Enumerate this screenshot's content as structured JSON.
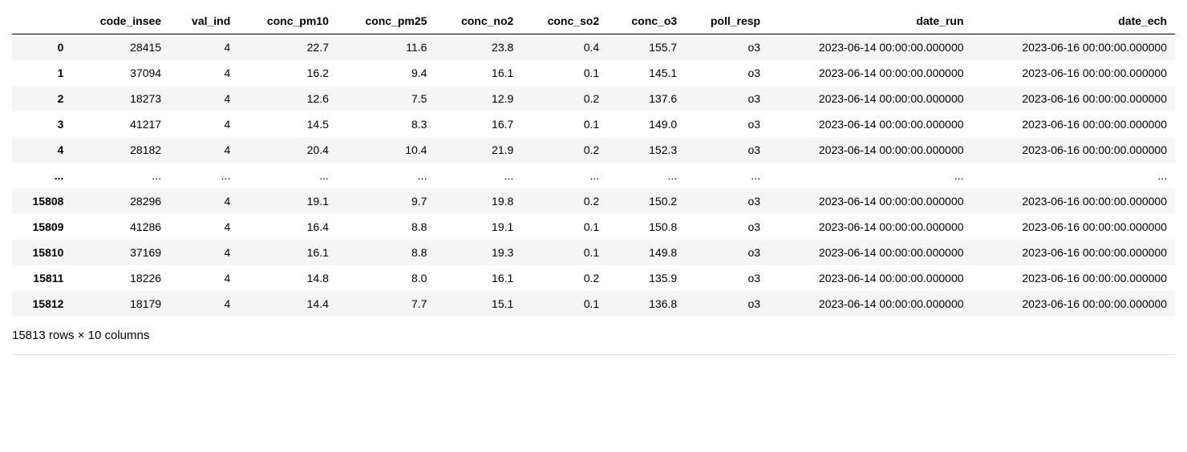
{
  "table": {
    "columns": [
      "code_insee",
      "val_ind",
      "conc_pm10",
      "conc_pm25",
      "conc_no2",
      "conc_so2",
      "conc_o3",
      "poll_resp",
      "date_run",
      "date_ech"
    ],
    "rows": [
      {
        "idx": "0",
        "cells": [
          "28415",
          "4",
          "22.7",
          "11.6",
          "23.8",
          "0.4",
          "155.7",
          "o3",
          "2023-06-14 00:00:00.000000",
          "2023-06-16 00:00:00.000000"
        ]
      },
      {
        "idx": "1",
        "cells": [
          "37094",
          "4",
          "16.2",
          "9.4",
          "16.1",
          "0.1",
          "145.1",
          "o3",
          "2023-06-14 00:00:00.000000",
          "2023-06-16 00:00:00.000000"
        ]
      },
      {
        "idx": "2",
        "cells": [
          "18273",
          "4",
          "12.6",
          "7.5",
          "12.9",
          "0.2",
          "137.6",
          "o3",
          "2023-06-14 00:00:00.000000",
          "2023-06-16 00:00:00.000000"
        ]
      },
      {
        "idx": "3",
        "cells": [
          "41217",
          "4",
          "14.5",
          "8.3",
          "16.7",
          "0.1",
          "149.0",
          "o3",
          "2023-06-14 00:00:00.000000",
          "2023-06-16 00:00:00.000000"
        ]
      },
      {
        "idx": "4",
        "cells": [
          "28182",
          "4",
          "20.4",
          "10.4",
          "21.9",
          "0.2",
          "152.3",
          "o3",
          "2023-06-14 00:00:00.000000",
          "2023-06-16 00:00:00.000000"
        ]
      },
      {
        "idx": "...",
        "cells": [
          "...",
          "...",
          "...",
          "...",
          "...",
          "...",
          "...",
          "...",
          "...",
          "..."
        ]
      },
      {
        "idx": "15808",
        "cells": [
          "28296",
          "4",
          "19.1",
          "9.7",
          "19.8",
          "0.2",
          "150.2",
          "o3",
          "2023-06-14 00:00:00.000000",
          "2023-06-16 00:00:00.000000"
        ]
      },
      {
        "idx": "15809",
        "cells": [
          "41286",
          "4",
          "16.4",
          "8.8",
          "19.1",
          "0.1",
          "150.8",
          "o3",
          "2023-06-14 00:00:00.000000",
          "2023-06-16 00:00:00.000000"
        ]
      },
      {
        "idx": "15810",
        "cells": [
          "37169",
          "4",
          "16.1",
          "8.8",
          "19.3",
          "0.1",
          "149.8",
          "o3",
          "2023-06-14 00:00:00.000000",
          "2023-06-16 00:00:00.000000"
        ]
      },
      {
        "idx": "15811",
        "cells": [
          "18226",
          "4",
          "14.8",
          "8.0",
          "16.1",
          "0.2",
          "135.9",
          "o3",
          "2023-06-14 00:00:00.000000",
          "2023-06-16 00:00:00.000000"
        ]
      },
      {
        "idx": "15812",
        "cells": [
          "18179",
          "4",
          "14.4",
          "7.7",
          "15.1",
          "0.1",
          "136.8",
          "o3",
          "2023-06-14 00:00:00.000000",
          "2023-06-16 00:00:00.000000"
        ]
      }
    ],
    "footer": "15813 rows × 10 columns"
  }
}
